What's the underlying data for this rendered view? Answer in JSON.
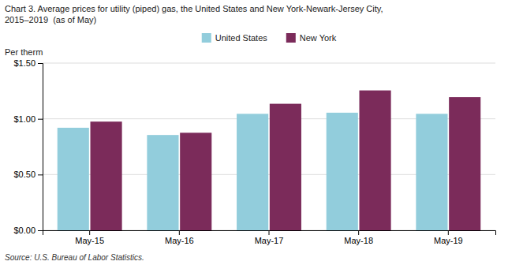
{
  "chart_data": {
    "type": "bar",
    "title": "Chart 3. Average prices for utility (piped) gas, the United States and New York-Newark-Jersey City,",
    "subtitle": "2015–2019  (as of May)",
    "ylabel": "Per therm",
    "annotations": [
      "Source: U.S. Bureau of Labor Statistics."
    ],
    "categories": [
      "May-15",
      "May-16",
      "May-17",
      "May-18",
      "May-19"
    ],
    "series": [
      {
        "name": "United States",
        "color": "#92CDDC",
        "values": [
          0.92,
          0.855,
          1.045,
          1.055,
          1.045
        ]
      },
      {
        "name": "New York",
        "color": "#7B2B5A",
        "values": [
          0.975,
          0.875,
          1.135,
          1.255,
          1.195
        ]
      }
    ],
    "ylim": [
      0.0,
      1.5
    ],
    "yticks": [
      {
        "value": 0.0,
        "label": "$0.00"
      },
      {
        "value": 0.5,
        "label": "$0.50"
      },
      {
        "value": 1.0,
        "label": "$1.00"
      },
      {
        "value": 1.5,
        "label": "$1.50"
      }
    ],
    "grid": true,
    "legend": "top"
  }
}
